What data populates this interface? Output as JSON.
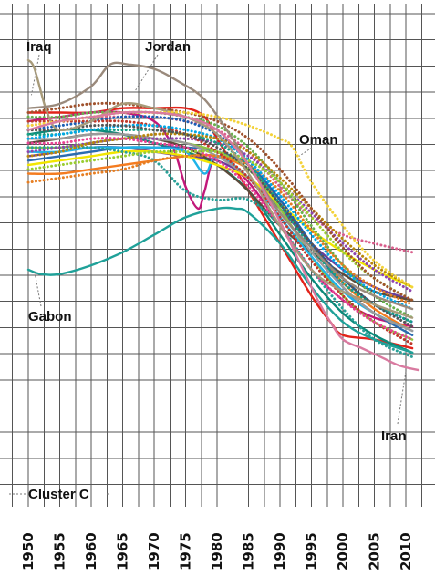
{
  "chart_data": {
    "type": "line",
    "title": "",
    "xlabel": "",
    "ylabel": "",
    "grid": true,
    "x_ticks": [
      "1950",
      "1955",
      "1960",
      "1965",
      "1970",
      "1975",
      "1980",
      "1985",
      "1990",
      "1995",
      "2000",
      "2005",
      "2010"
    ],
    "xlim": [
      1950,
      2012
    ],
    "ylim": [
      0,
      100
    ],
    "annotations": [
      {
        "text": "Iraq",
        "x": 1952,
        "y": 97
      },
      {
        "text": "Jordan",
        "x": 1972,
        "y": 97
      },
      {
        "text": "Oman",
        "x": 1996,
        "y": 85
      },
      {
        "text": "Gabon",
        "x": 1954,
        "y": 52
      },
      {
        "text": "Iran",
        "x": 2008,
        "y": 27
      },
      {
        "text": "Cluster C",
        "x": 1955,
        "y": 5
      }
    ],
    "series": [
      {
        "name": "Iraq",
        "color": "#a89b7a",
        "style": "solid",
        "x": [
          1950,
          1951,
          1953,
          1955,
          1960,
          1965,
          1970,
          1975,
          1980,
          1985,
          1990,
          1995,
          2000,
          2005,
          2011
        ],
        "y": [
          100,
          98,
          88,
          84,
          86,
          90,
          89,
          87,
          83,
          74,
          62,
          52,
          47,
          44,
          41
        ]
      },
      {
        "name": "Jordan",
        "color": "#9a8a7c",
        "style": "solid",
        "x": [
          1950,
          1955,
          1960,
          1963,
          1966,
          1970,
          1974,
          1978,
          1982,
          1985,
          1990,
          1995,
          2000,
          2005,
          2011
        ],
        "y": [
          89,
          90,
          94,
          99,
          99,
          98,
          95,
          91,
          83,
          76,
          65,
          57,
          50,
          46,
          43
        ]
      },
      {
        "name": "Oman",
        "color": "#f3d23a",
        "style": "dotted",
        "x": [
          1950,
          1955,
          1960,
          1965,
          1970,
          1975,
          1980,
          1985,
          1990,
          1992,
          1995,
          2000,
          2005,
          2011
        ],
        "y": [
          85,
          86,
          87,
          88,
          88,
          88,
          87,
          85,
          82,
          80,
          72,
          62,
          54,
          48
        ]
      },
      {
        "name": "Gabon",
        "color": "#1fa199",
        "style": "solid",
        "x": [
          1950,
          1952,
          1955,
          1960,
          1965,
          1970,
          1975,
          1980,
          1983,
          1985,
          1990,
          1995,
          2000,
          2005,
          2011
        ],
        "y": [
          52,
          51,
          51,
          53,
          56,
          60,
          64,
          66,
          66,
          65,
          58,
          48,
          40,
          36,
          33
        ]
      },
      {
        "name": "Iran",
        "color": "#d97aa0",
        "style": "solid",
        "x": [
          1950,
          1955,
          1960,
          1965,
          1970,
          1975,
          1980,
          1985,
          1990,
          1993,
          1996,
          1998,
          2000,
          2003,
          2006,
          2009,
          2012
        ],
        "y": [
          84,
          86,
          87,
          88,
          88,
          87,
          84,
          76,
          63,
          54,
          45,
          40,
          36,
          34,
          32,
          30,
          29
        ]
      },
      {
        "name": "",
        "color": "#e2231a",
        "style": "solid",
        "x": [
          1950,
          1955,
          1960,
          1965,
          1970,
          1975,
          1978,
          1980,
          1985,
          1990,
          1995,
          1998,
          2000,
          2005,
          2011
        ],
        "y": [
          88,
          88,
          88,
          89,
          89,
          89,
          87,
          82,
          70,
          58,
          46,
          40,
          37,
          36,
          34
        ]
      },
      {
        "name": "",
        "color": "#c2187a",
        "style": "solid",
        "x": [
          1950,
          1955,
          1960,
          1965,
          1970,
          1973,
          1975,
          1977,
          1978,
          1980,
          1985,
          1990,
          1995,
          2000,
          2005,
          2011
        ],
        "y": [
          86,
          87,
          88,
          88,
          86,
          80,
          71,
          66,
          70,
          78,
          72,
          62,
          52,
          45,
          41,
          39
        ]
      },
      {
        "name": "",
        "color": "#0c8a7a",
        "style": "solid",
        "x": [
          1950,
          1955,
          1960,
          1965,
          1970,
          1975,
          1980,
          1985,
          1990,
          1995,
          2000,
          2005,
          2011
        ],
        "y": [
          83,
          84,
          84,
          83,
          81,
          79,
          76,
          70,
          60,
          50,
          42,
          37,
          33
        ]
      },
      {
        "name": "",
        "color": "#f47c20",
        "style": "solid",
        "x": [
          1950,
          1955,
          1960,
          1965,
          1970,
          1975,
          1980,
          1985,
          1990,
          1995,
          2000,
          2005,
          2011
        ],
        "y": [
          74,
          74,
          75,
          76,
          77,
          78,
          78,
          75,
          68,
          58,
          49,
          43,
          38
        ]
      },
      {
        "name": "",
        "color": "#2b6cb0",
        "style": "solid",
        "x": [
          1950,
          1955,
          1960,
          1965,
          1970,
          1975,
          1980,
          1985,
          1990,
          1995,
          2000,
          2005,
          2011
        ],
        "y": [
          77,
          78,
          79,
          80,
          80,
          80,
          79,
          76,
          68,
          58,
          48,
          42,
          37
        ]
      },
      {
        "name": "",
        "color": "#6a3d9a",
        "style": "solid",
        "x": [
          1950,
          1955,
          1960,
          1965,
          1970,
          1975,
          1980,
          1985,
          1990,
          1995,
          2000,
          2005,
          2011
        ],
        "y": [
          78,
          79,
          80,
          80,
          79,
          78,
          77,
          73,
          66,
          58,
          52,
          48,
          45
        ]
      },
      {
        "name": "",
        "color": "#8dc63f",
        "style": "solid",
        "x": [
          1950,
          1955,
          1960,
          1965,
          1970,
          1975,
          1980,
          1985,
          1990,
          1995,
          2000,
          2005,
          2011
        ],
        "y": [
          80,
          80,
          81,
          82,
          82,
          81,
          79,
          75,
          66,
          55,
          46,
          40,
          36
        ]
      },
      {
        "name": "",
        "color": "#5b4a3a",
        "style": "solid",
        "x": [
          1950,
          1955,
          1960,
          1965,
          1970,
          1975,
          1980,
          1985,
          1990,
          1995,
          2000,
          2005,
          2011
        ],
        "y": [
          81,
          82,
          83,
          83,
          82,
          80,
          76,
          70,
          62,
          56,
          51,
          47,
          45
        ]
      },
      {
        "name": "",
        "color": "#1fb3e8",
        "style": "solid",
        "x": [
          1950,
          1955,
          1960,
          1965,
          1970,
          1975,
          1978,
          1980,
          1985,
          1990,
          1995,
          2000,
          2005,
          2011
        ],
        "y": [
          79,
          79,
          80,
          80,
          80,
          79,
          74,
          78,
          73,
          64,
          55,
          47,
          42,
          38
        ]
      },
      {
        "name": "",
        "color": "#f2e600",
        "style": "solid",
        "x": [
          1950,
          1955,
          1960,
          1965,
          1970,
          1975,
          1980,
          1985,
          1990,
          1995,
          2000,
          2005,
          2011
        ],
        "y": [
          76,
          77,
          78,
          79,
          79,
          78,
          76,
          73,
          67,
          61,
          56,
          52,
          48
        ]
      },
      {
        "name": "",
        "color": "#9b9b9b",
        "style": "solid",
        "x": [
          1950,
          1955,
          1960,
          1965,
          1970,
          1975,
          1980,
          1985,
          1990,
          1995,
          2000,
          2005,
          2011
        ],
        "y": [
          82,
          82,
          83,
          83,
          82,
          81,
          78,
          73,
          65,
          56,
          48,
          42,
          38
        ]
      },
      {
        "name": "",
        "color": "#d95f8c",
        "style": "dotted",
        "x": [
          1950,
          1955,
          1960,
          1965,
          1970,
          1975,
          1980,
          1985,
          1990,
          1995,
          2000,
          2005,
          2011
        ],
        "y": [
          85,
          86,
          87,
          87,
          87,
          86,
          84,
          79,
          71,
          64,
          60,
          58,
          56
        ]
      },
      {
        "name": "",
        "color": "#2aa198",
        "style": "dotted",
        "x": [
          1950,
          1955,
          1960,
          1965,
          1970,
          1975,
          1980,
          1985,
          1990,
          1995,
          2000,
          2005,
          2011
        ],
        "y": [
          80,
          80,
          80,
          79,
          77,
          70,
          68,
          68,
          62,
          52,
          43,
          36,
          32
        ]
      },
      {
        "name": "",
        "color": "#1a5fb4",
        "style": "dotted",
        "x": [
          1950,
          1955,
          1960,
          1965,
          1970,
          1975,
          1980,
          1985,
          1990,
          1995,
          2000,
          2005,
          2011
        ],
        "y": [
          84,
          85,
          86,
          87,
          87,
          86,
          83,
          77,
          68,
          58,
          50,
          44,
          40
        ]
      },
      {
        "name": "",
        "color": "#6ab04c",
        "style": "dotted",
        "x": [
          1950,
          1955,
          1960,
          1965,
          1970,
          1975,
          1980,
          1985,
          1990,
          1995,
          2000,
          2005,
          2011
        ],
        "y": [
          87,
          87,
          88,
          88,
          88,
          87,
          85,
          80,
          72,
          62,
          53,
          46,
          41
        ]
      },
      {
        "name": "",
        "color": "#e67e22",
        "style": "dotted",
        "x": [
          1950,
          1955,
          1960,
          1965,
          1970,
          1975,
          1980,
          1985,
          1990,
          1995,
          2000,
          2005,
          2011
        ],
        "y": [
          72,
          73,
          74,
          75,
          77,
          78,
          78,
          76,
          70,
          61,
          53,
          48,
          44
        ]
      },
      {
        "name": "",
        "color": "#8e44ad",
        "style": "dotted",
        "x": [
          1950,
          1955,
          1960,
          1965,
          1970,
          1975,
          1980,
          1985,
          1990,
          1995,
          2000,
          2005,
          2011
        ],
        "y": [
          79,
          80,
          81,
          82,
          82,
          82,
          81,
          78,
          72,
          65,
          58,
          52,
          47
        ]
      },
      {
        "name": "",
        "color": "#16a085",
        "style": "dotted",
        "x": [
          1950,
          1955,
          1960,
          1965,
          1970,
          1975,
          1980,
          1985,
          1990,
          1995,
          2000,
          2005,
          2011
        ],
        "y": [
          83,
          83,
          84,
          84,
          84,
          83,
          81,
          76,
          67,
          57,
          49,
          44,
          40
        ]
      },
      {
        "name": "",
        "color": "#c0392b",
        "style": "dotted",
        "x": [
          1950,
          1955,
          1960,
          1965,
          1970,
          1975,
          1980,
          1985,
          1990,
          1995,
          2000,
          2005,
          2011
        ],
        "y": [
          86,
          86,
          86,
          86,
          85,
          83,
          79,
          73,
          64,
          54,
          46,
          40,
          35
        ]
      },
      {
        "name": "",
        "color": "#00a8e8",
        "style": "dotted",
        "x": [
          1950,
          1955,
          1960,
          1965,
          1970,
          1975,
          1980,
          1985,
          1990,
          1995,
          2000,
          2005,
          2011
        ],
        "y": [
          82,
          83,
          84,
          85,
          85,
          84,
          82,
          77,
          69,
          60,
          52,
          47,
          43
        ]
      },
      {
        "name": "",
        "color": "#b8860b",
        "style": "dotted",
        "x": [
          1950,
          1955,
          1960,
          1965,
          1970,
          1975,
          1980,
          1985,
          1990,
          1995,
          2000,
          2005,
          2011
        ],
        "y": [
          78,
          79,
          81,
          82,
          83,
          83,
          82,
          79,
          73,
          66,
          59,
          53,
          48
        ]
      },
      {
        "name": "",
        "color": "#e84393",
        "style": "dotted",
        "x": [
          1950,
          1955,
          1960,
          1965,
          1970,
          1975,
          1980,
          1985,
          1990,
          1995,
          2000,
          2005,
          2011
        ],
        "y": [
          81,
          81,
          82,
          82,
          81,
          80,
          77,
          71,
          62,
          52,
          45,
          40,
          36
        ]
      },
      {
        "name": "",
        "color": "#9acd32",
        "style": "dotted",
        "x": [
          1950,
          1955,
          1960,
          1965,
          1970,
          1975,
          1980,
          1985,
          1990,
          1995,
          2000,
          2005,
          2011
        ],
        "y": [
          75,
          76,
          77,
          78,
          79,
          79,
          79,
          77,
          72,
          64,
          56,
          50,
          45
        ]
      },
      {
        "name": "",
        "color": "#a0522d",
        "style": "dotted",
        "x": [
          1950,
          1955,
          1960,
          1965,
          1970,
          1975,
          1980,
          1985,
          1990,
          1995,
          2000,
          2005,
          2011
        ],
        "y": [
          88,
          89,
          90,
          90,
          89,
          88,
          86,
          82,
          75,
          66,
          57,
          50,
          45
        ]
      },
      {
        "name": "",
        "color": "#555555",
        "style": "dotted",
        "x": [
          1950,
          1955,
          1960,
          1965,
          1970,
          1975,
          1980,
          1985,
          1990,
          1995,
          2000,
          2005,
          2011
        ],
        "y": [
          84,
          84,
          85,
          85,
          84,
          83,
          80,
          75,
          67,
          58,
          50,
          44,
          39
        ]
      }
    ]
  }
}
